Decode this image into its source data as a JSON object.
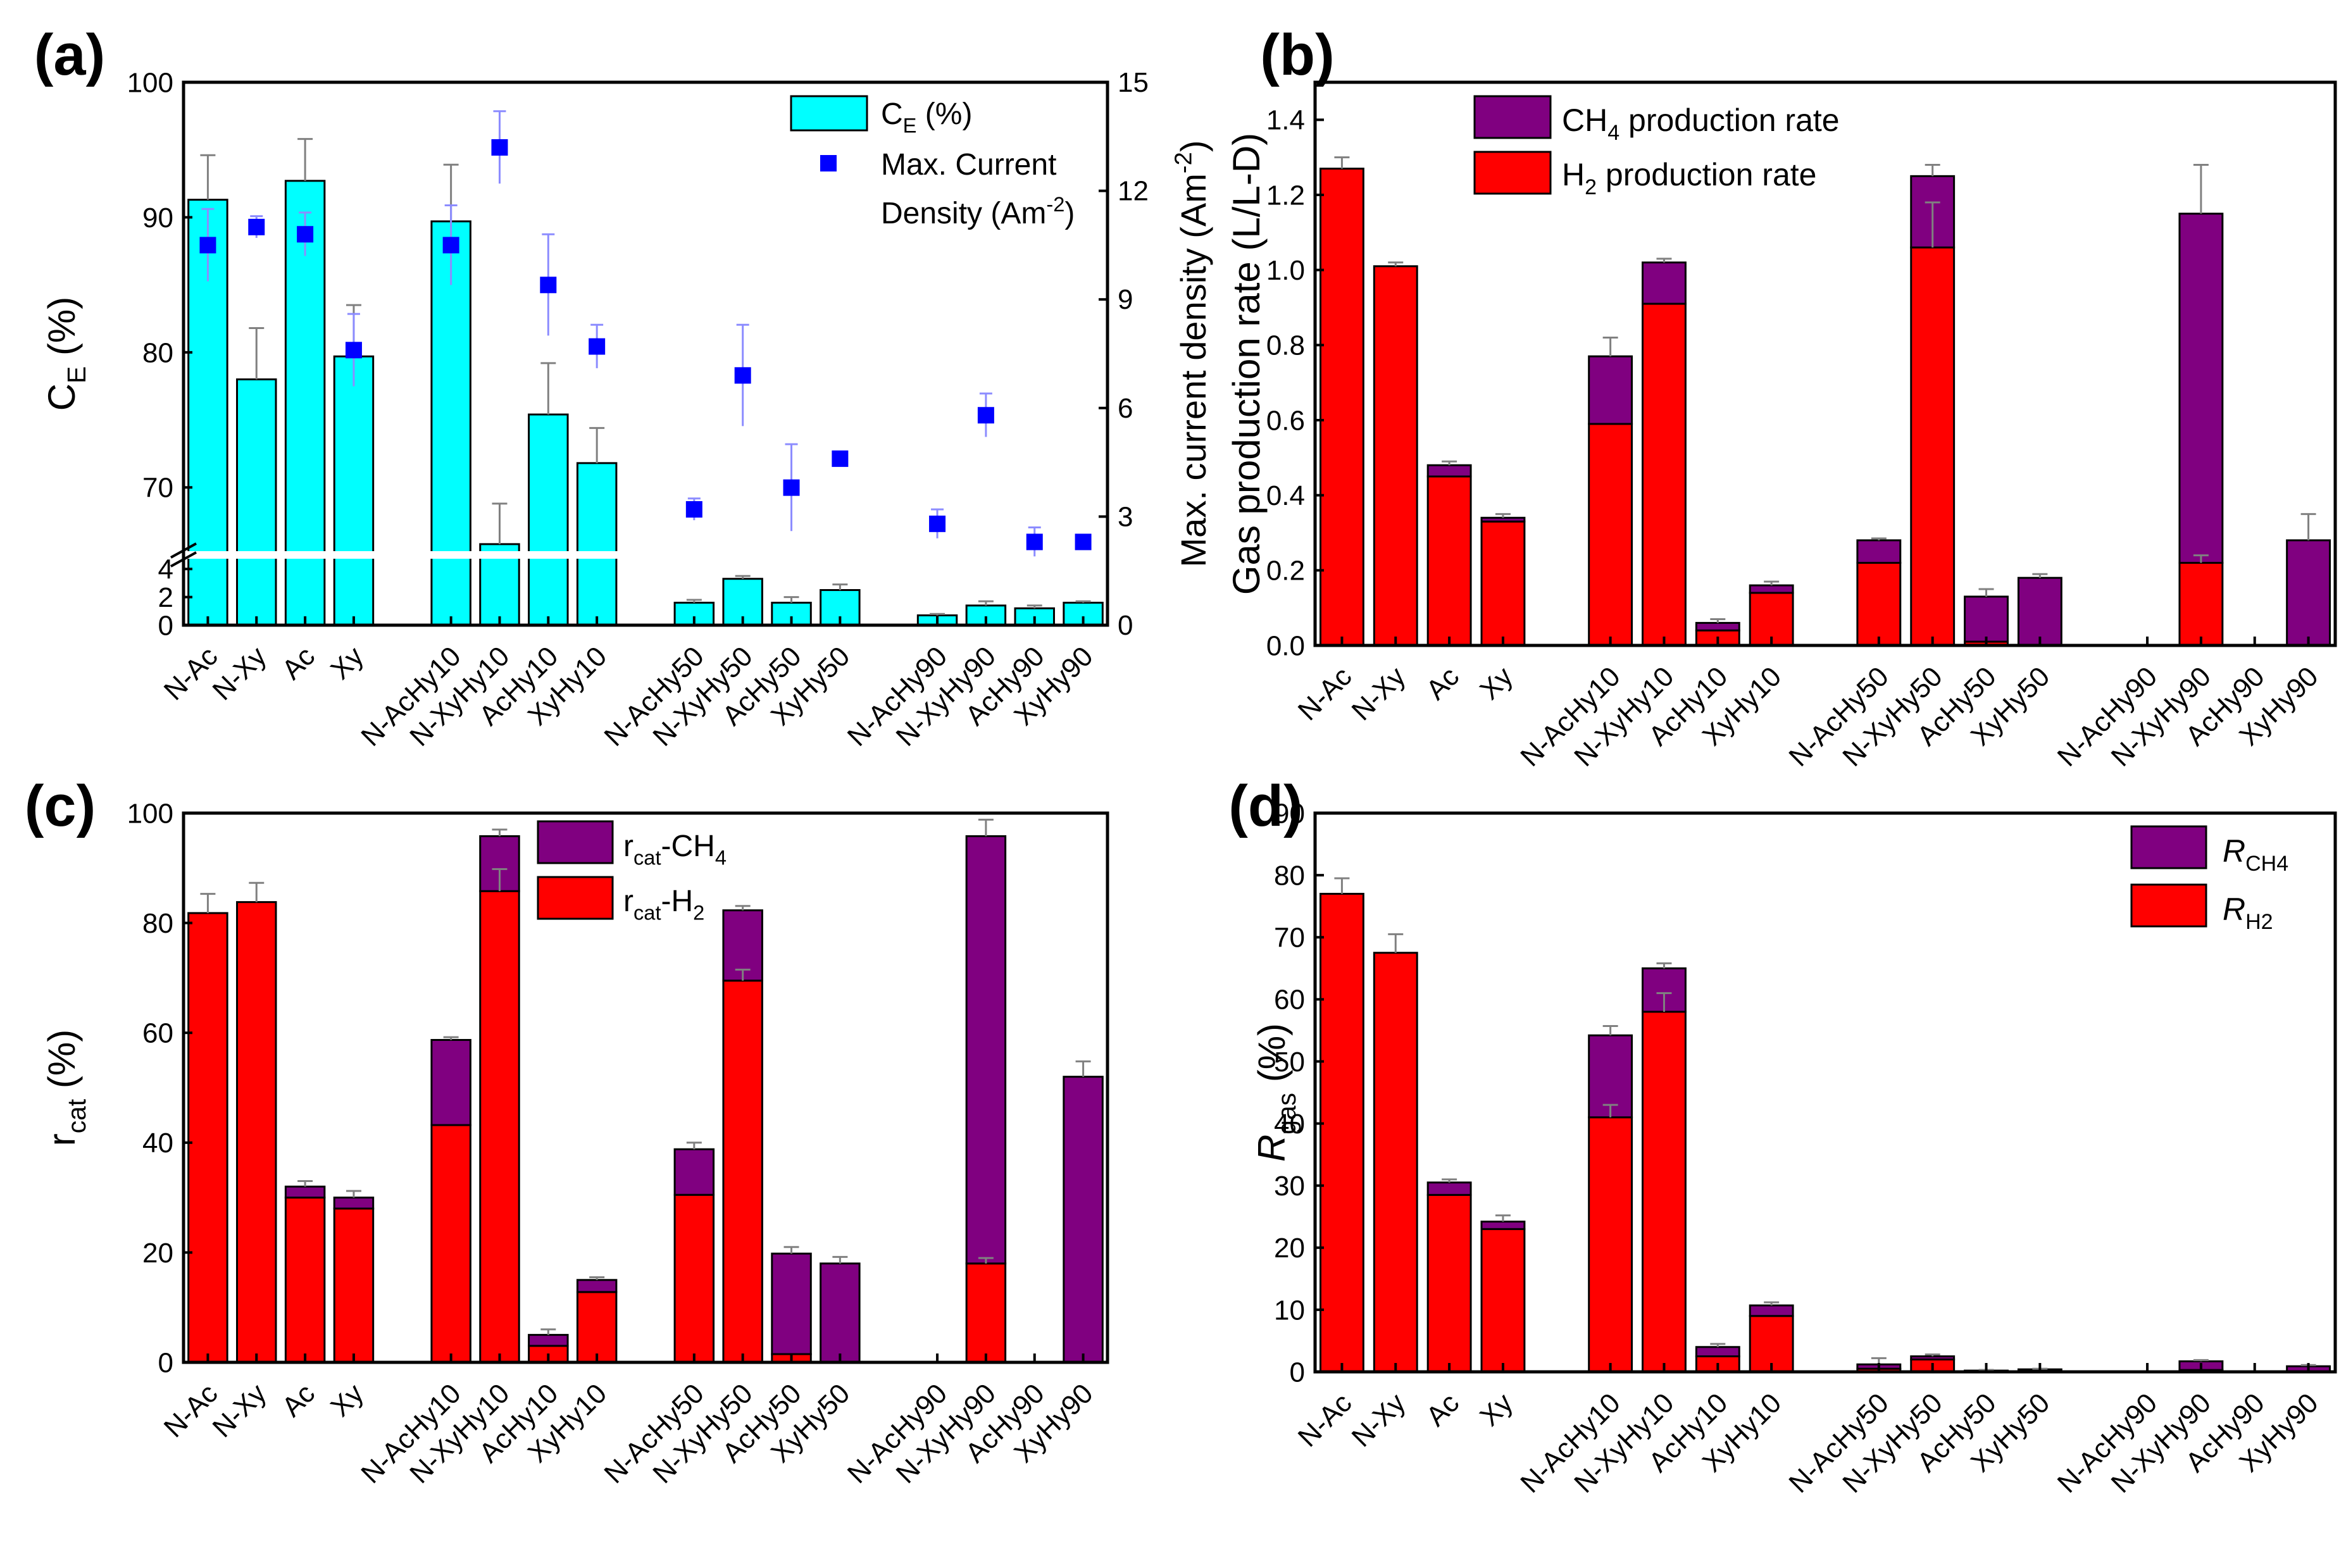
{
  "categories": [
    "N-Ac",
    "N-Xy",
    "Ac",
    "Xy",
    "N-AcHy10",
    "N-XyHy10",
    "AcHy10",
    "XyHy10",
    "N-AcHy50",
    "N-XyHy50",
    "AcHy50",
    "XyHy50",
    "N-AcHy90",
    "N-XyHy90",
    "AcHy90",
    "XyHy90"
  ],
  "colors": {
    "ce": "#00ffff",
    "current": "#0000ff",
    "ch4": "#800080",
    "h2": "#ff0000",
    "error": "#808080"
  },
  "chart_data": [
    {
      "id": "a",
      "panel_label": "(a)",
      "type": "bar",
      "ylabel": "C",
      "ylabel_sub": "E",
      "ylabel_tail": " (%)",
      "ylabel_right": "Max. current density (Am",
      "ylabel_right_sup": "-2",
      "ylabel_right_tail": ")",
      "broken_axis": true,
      "ylim_lower": [
        0,
        5
      ],
      "ylim_upper": [
        65,
        100
      ],
      "yticks_lower": [
        "0",
        "2",
        "4"
      ],
      "yticks_upper": [
        "70",
        "80",
        "90",
        "100"
      ],
      "ylim_right": [
        0,
        15
      ],
      "yticks_right": [
        "0",
        "3",
        "6",
        "9",
        "12",
        "15"
      ],
      "series": [
        {
          "name": "C_E (%)",
          "legend_main": "C",
          "legend_sub": "E",
          "legend_tail": " (%)",
          "kind": "bar",
          "values": [
            91.3,
            78.0,
            92.7,
            79.7,
            89.7,
            65.8,
            75.4,
            71.8,
            1.6,
            3.3,
            1.6,
            2.5,
            0.7,
            1.4,
            1.2,
            1.6
          ],
          "errors": [
            3.3,
            3.8,
            3.1,
            3.8,
            4.2,
            3.0,
            3.8,
            2.6,
            0.2,
            0.2,
            0.4,
            0.4,
            0.1,
            0.3,
            0.2,
            0.1
          ]
        },
        {
          "name": "Max. Current Density (Am-2)",
          "legend_line1": "Max. Current",
          "legend_line2": "Density (Am",
          "legend_sup": "-2",
          "legend_tail": ")",
          "kind": "scatter",
          "values": [
            10.5,
            11.0,
            10.8,
            7.6,
            10.5,
            13.2,
            9.4,
            7.7,
            3.2,
            6.9,
            3.8,
            4.6,
            2.8,
            5.8,
            2.3,
            2.3
          ],
          "errors": [
            1.0,
            0.3,
            0.6,
            1.0,
            1.1,
            1.0,
            1.4,
            0.6,
            0.3,
            1.4,
            1.2,
            0.2,
            0.4,
            0.6,
            0.4,
            0.0
          ]
        }
      ]
    },
    {
      "id": "b",
      "panel_label": "(b)",
      "type": "stacked-bar",
      "ylabel": "Gas production rate (L/L-D)",
      "ylim": [
        0,
        1.5
      ],
      "yticks": [
        "0.0",
        "0.2",
        "0.4",
        "0.6",
        "0.8",
        "1.0",
        "1.2",
        "1.4"
      ],
      "series": [
        {
          "name": "H2 production rate",
          "legend_a": "H",
          "legend_sub": "2",
          "legend_b": " production rate",
          "values": [
            1.27,
            1.01,
            0.45,
            0.33,
            0.59,
            0.91,
            0.04,
            0.14,
            0.22,
            1.06,
            0.01,
            0.0,
            0.0,
            0.22,
            0.0,
            0.0
          ],
          "errors": [
            0,
            0,
            0,
            0,
            0,
            0,
            0,
            0,
            0,
            0.12,
            0,
            0,
            0,
            0.02,
            0,
            0
          ]
        },
        {
          "name": "CH4 production rate",
          "legend_a": "CH",
          "legend_sub": "4",
          "legend_b": " production rate",
          "values": [
            0.0,
            0.0,
            0.03,
            0.01,
            0.18,
            0.11,
            0.02,
            0.02,
            0.06,
            0.19,
            0.12,
            0.18,
            0.0,
            0.93,
            0.0,
            0.28
          ],
          "errors": [
            0.03,
            0.01,
            0.01,
            0.01,
            0.05,
            0.01,
            0.01,
            0.01,
            0.005,
            0.03,
            0.02,
            0.01,
            0,
            0.13,
            0,
            0.07
          ]
        }
      ]
    },
    {
      "id": "c",
      "panel_label": "(c)",
      "type": "stacked-bar",
      "ylabel": "r",
      "ylabel_sub": "cat",
      "ylabel_tail": " (%)",
      "ylim": [
        0,
        100
      ],
      "yticks": [
        "0",
        "20",
        "40",
        "60",
        "80",
        "100"
      ],
      "series": [
        {
          "name": "rcat-H2",
          "legend_a": "r",
          "legend_sub": "cat",
          "legend_b": "-H",
          "legend_sub2": "2",
          "values": [
            81.8,
            83.8,
            30.0,
            28.0,
            43.2,
            85.8,
            3.0,
            12.8,
            30.5,
            69.5,
            1.5,
            0.0,
            0.0,
            18.0,
            0.0,
            0.0
          ],
          "errors": [
            0,
            0,
            0,
            0,
            0,
            4.0,
            0,
            0,
            0,
            2.0,
            0,
            0,
            0,
            1.0,
            0,
            0
          ]
        },
        {
          "name": "rcat-CH4",
          "legend_a": "r",
          "legend_sub": "cat",
          "legend_b": "-CH",
          "legend_sub2": "4",
          "values": [
            0.0,
            0.0,
            2.0,
            2.0,
            15.5,
            10.0,
            2.0,
            2.2,
            8.3,
            12.8,
            18.3,
            18.0,
            0.0,
            77.8,
            0.0,
            52.0
          ],
          "errors": [
            3.5,
            3.5,
            1.0,
            1.2,
            0.5,
            1.2,
            1.0,
            0.5,
            1.2,
            0.8,
            1.2,
            1.2,
            0,
            3.0,
            0,
            2.8
          ]
        }
      ]
    },
    {
      "id": "d",
      "panel_label": "(d)",
      "type": "stacked-bar",
      "ylabel": "R",
      "ylabel_sub": "gas",
      "ylabel_tail": " (%)",
      "ylim": [
        0,
        90
      ],
      "yticks": [
        "0",
        "10",
        "20",
        "30",
        "40",
        "50",
        "60",
        "70",
        "80",
        "90"
      ],
      "series": [
        {
          "name": "R_H2",
          "legend_a": "R",
          "legend_sub": "H",
          "legend_sub2": "2",
          "values": [
            77.0,
            67.5,
            28.5,
            23.0,
            41.0,
            58.0,
            2.5,
            9.0,
            0.5,
            2.0,
            0.1,
            0.1,
            0.0,
            0.3,
            0.0,
            0.0
          ],
          "errors": [
            0,
            0,
            0,
            0,
            2.0,
            3.0,
            0,
            0,
            0,
            0,
            0,
            0,
            0,
            0,
            0,
            0
          ]
        },
        {
          "name": "R_CH4",
          "legend_a": "R",
          "legend_sub": "CH",
          "legend_sub2": "4",
          "values": [
            0.0,
            0.0,
            2.0,
            1.2,
            13.2,
            7.0,
            1.5,
            1.7,
            0.7,
            0.5,
            0.1,
            0.3,
            0.0,
            1.4,
            0.0,
            0.9
          ],
          "errors": [
            2.5,
            3.0,
            0.5,
            1.0,
            1.5,
            0.8,
            0.5,
            0.5,
            1.0,
            0.3,
            0.1,
            0.1,
            0,
            0.2,
            0,
            0.2
          ]
        }
      ]
    }
  ]
}
